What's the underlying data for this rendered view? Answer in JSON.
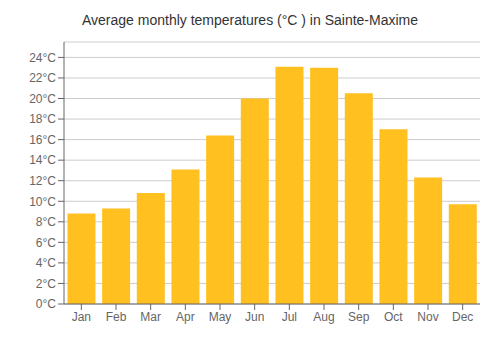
{
  "chart_data": {
    "type": "bar",
    "title": "Average monthly temperatures (°C ) in Sainte-Maxime",
    "categories": [
      "Jan",
      "Feb",
      "Mar",
      "Apr",
      "May",
      "Jun",
      "Jul",
      "Aug",
      "Sep",
      "Oct",
      "Nov",
      "Dec"
    ],
    "values": [
      8.8,
      9.3,
      10.8,
      13.1,
      16.4,
      20.0,
      23.1,
      23.0,
      20.5,
      17.0,
      12.3,
      9.7
    ],
    "color": "#FFC020",
    "ylim": [
      0,
      25.5
    ],
    "yticks": [
      {
        "value": 0,
        "label": "0°C"
      },
      {
        "value": 2,
        "label": "2°C"
      },
      {
        "value": 4,
        "label": "4°C"
      },
      {
        "value": 6,
        "label": "6°C"
      },
      {
        "value": 8,
        "label": "8°C"
      },
      {
        "value": 10,
        "label": "10°C"
      },
      {
        "value": 12,
        "label": "12°C"
      },
      {
        "value": 14,
        "label": "14°C"
      },
      {
        "value": 16,
        "label": "16°C"
      },
      {
        "value": 18,
        "label": "18°C"
      },
      {
        "value": 20,
        "label": "20°C"
      },
      {
        "value": 22,
        "label": "22°C"
      },
      {
        "value": 24,
        "label": "24°C"
      }
    ],
    "grid": true
  }
}
